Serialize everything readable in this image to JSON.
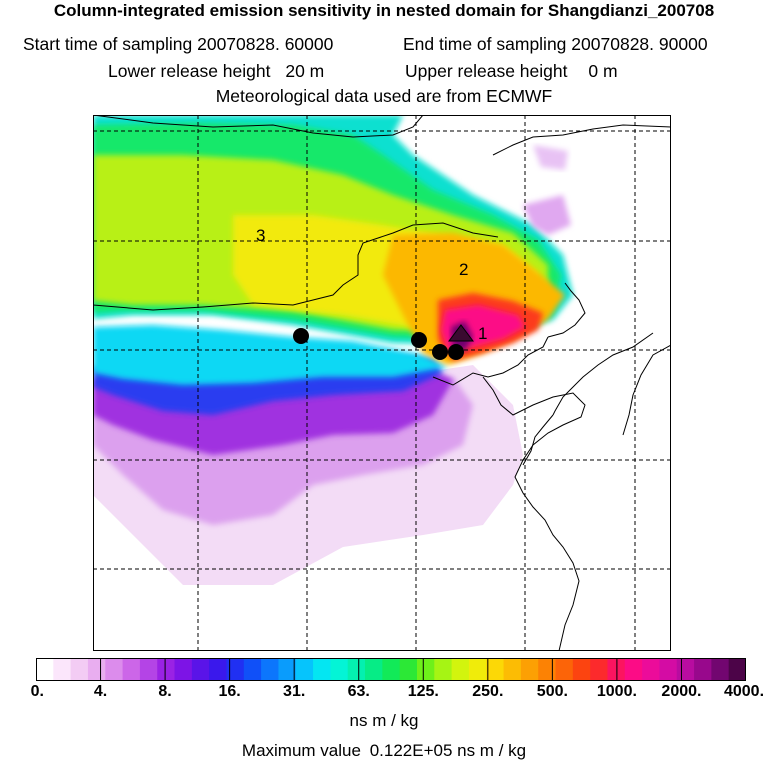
{
  "title": "Column-integrated emission sensitivity in nested domain for Shangdianzi_200708",
  "start_label": "Start time of sampling",
  "start_value": "20070828. 60000",
  "end_label": "End time of sampling",
  "end_value": "20070828. 90000",
  "lower_label": "Lower release height",
  "lower_value": "20 m",
  "upper_label": "Upper release height",
  "upper_value": "0 m",
  "met_text": "Meteorological data used are from ECMWF",
  "markers": [
    "1",
    "2",
    "3"
  ],
  "colorbar": {
    "ticks": [
      "0.",
      "4.",
      "8.",
      "16.",
      "31.",
      "63.",
      "125.",
      "250.",
      "500.",
      "1000.",
      "2000.",
      "4000."
    ],
    "colors": [
      "#ffffff",
      "#fbe6fb",
      "#f3ccf4",
      "#e9aef0",
      "#dc8cec",
      "#cc66e8",
      "#b444e6",
      "#9a22e4",
      "#7d14e6",
      "#5a14e8",
      "#3a18ec",
      "#2030f2",
      "#1050f8",
      "#0c76fc",
      "#0a9cfc",
      "#06c4fc",
      "#04e6f2",
      "#04f4d6",
      "#04f0b0",
      "#06ec86",
      "#12ea58",
      "#2ce836",
      "#6ef01a",
      "#a6f414",
      "#d2f40e",
      "#f0ec0a",
      "#fcd806",
      "#fcbc04",
      "#fca004",
      "#fc8204",
      "#fc6408",
      "#fc4410",
      "#fc2a2c",
      "#fc1460",
      "#fc0c86",
      "#ec0c9a",
      "#d40ca4",
      "#b80ca0",
      "#98088c",
      "#720670",
      "#4c0448"
    ],
    "units": "ns m / kg"
  },
  "max_label": "Maximum value",
  "max_value": "0.122E+05 ns m / kg"
}
